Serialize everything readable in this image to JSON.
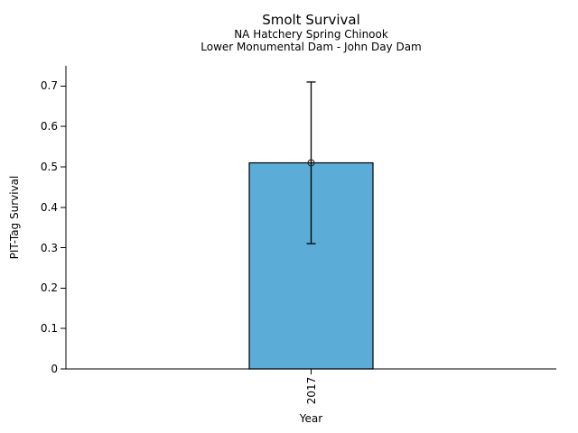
{
  "chart_data": {
    "type": "bar",
    "title": "Smolt Survival",
    "subtitle_line1": "NA Hatchery Spring Chinook",
    "subtitle_line2": "Lower Monumental Dam - John Day Dam",
    "xlabel": "Year",
    "ylabel": "PIT-Tag Survival",
    "categories": [
      "2017"
    ],
    "values": [
      0.51
    ],
    "error_low": [
      0.31
    ],
    "error_high": [
      0.71
    ],
    "ylim": [
      0,
      0.75
    ],
    "yticks": [
      0,
      0.1,
      0.2,
      0.3,
      0.4,
      0.5,
      0.6,
      0.7
    ],
    "ytick_labels": [
      "0",
      "0.1",
      "0.2",
      "0.3",
      "0.4",
      "0.5",
      "0.6",
      "0.7"
    ],
    "grid": false,
    "legend": "none",
    "marker": "open-circle",
    "colors": {
      "bar_fill": "#5BACD6",
      "bar_edge": "#000000",
      "error_bar": "#000000",
      "marker_edge": "#262626",
      "axis": "#000000",
      "background": "#FFFFFF",
      "text": "#000000"
    }
  }
}
